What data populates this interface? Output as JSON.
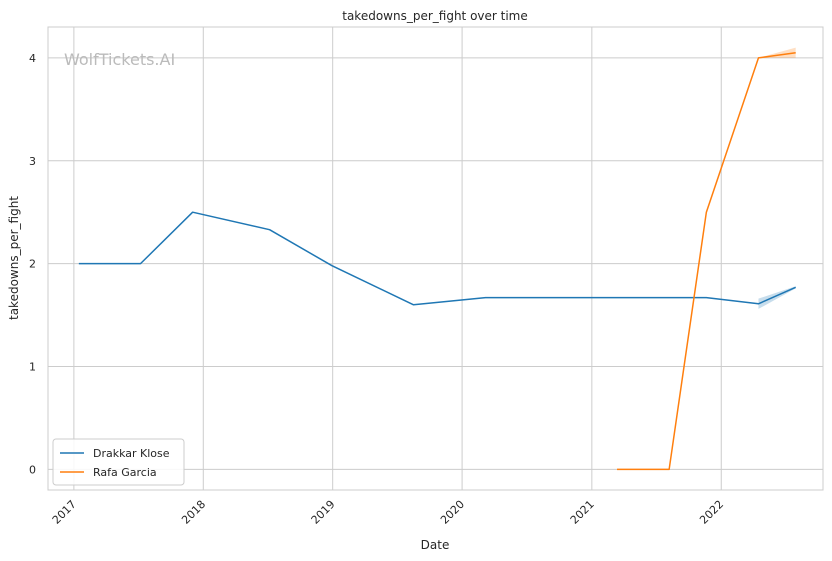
{
  "chart_data": {
    "type": "line",
    "title": "takedowns_per_fight over time",
    "xlabel": "Date",
    "ylabel": "takedowns_per_fight",
    "watermark": "WolfTickets.AI",
    "x_ticks": [
      "2017",
      "2018",
      "2019",
      "2020",
      "2021",
      "2022"
    ],
    "y_ticks": [
      "0",
      "1",
      "2",
      "3",
      "4"
    ],
    "xlim": [
      "2016-10-20",
      "2022-10-15"
    ],
    "ylim": [
      -0.2,
      4.3
    ],
    "grid": true,
    "legend_position": "lower-left",
    "series": [
      {
        "name": "Drakkar Klose",
        "color": "#1f77b4",
        "points": [
          {
            "x": "2017-01-15",
            "y": 2.0
          },
          {
            "x": "2017-07-08",
            "y": 2.0
          },
          {
            "x": "2017-12-02",
            "y": 2.5
          },
          {
            "x": "2018-07-07",
            "y": 2.33
          },
          {
            "x": "2018-12-30",
            "y": 1.98
          },
          {
            "x": "2019-08-17",
            "y": 1.6
          },
          {
            "x": "2020-03-07",
            "y": 1.67
          },
          {
            "x": "2021-11-20",
            "y": 1.67
          },
          {
            "x": "2022-04-16",
            "y": 1.61
          },
          {
            "x": "2022-07-30",
            "y": 1.77
          }
        ],
        "band": [
          {
            "x": "2022-04-16",
            "lo": 1.56,
            "hi": 1.66
          },
          {
            "x": "2022-07-30",
            "lo": 1.76,
            "hi": 1.78
          }
        ]
      },
      {
        "name": "Rafa Garcia",
        "color": "#ff7f0e",
        "points": [
          {
            "x": "2021-03-13",
            "y": 0.0
          },
          {
            "x": "2021-08-07",
            "y": 0.0
          },
          {
            "x": "2021-11-20",
            "y": 2.5
          },
          {
            "x": "2022-04-16",
            "y": 4.0
          },
          {
            "x": "2022-07-30",
            "y": 4.05
          }
        ],
        "band": [
          {
            "x": "2022-04-16",
            "lo": 4.0,
            "hi": 4.0
          },
          {
            "x": "2022-07-30",
            "lo": 4.0,
            "hi": 4.1
          }
        ]
      }
    ]
  }
}
